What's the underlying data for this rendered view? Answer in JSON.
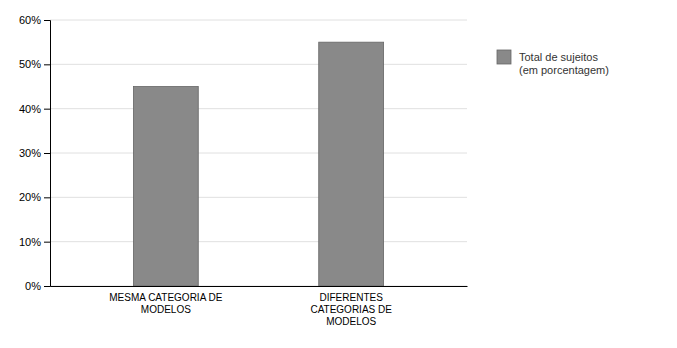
{
  "chart_data": {
    "type": "bar",
    "categories": [
      "MESMA CATEGORIA DE\nMODELOS",
      "DIFERENTES\nCATEGORIAS DE\nMODELOS"
    ],
    "series": [
      {
        "name": "Total de sujeitos\n(em porcentagem)",
        "color": "#898989",
        "values": [
          0.45,
          0.55
        ]
      }
    ],
    "ylim": [
      0,
      0.6
    ],
    "yticks": [
      {
        "value": 0.0,
        "label": "0%"
      },
      {
        "value": 0.1,
        "label": "10%"
      },
      {
        "value": 0.2,
        "label": "20%"
      },
      {
        "value": 0.3,
        "label": "30%"
      },
      {
        "value": 0.4,
        "label": "40%"
      },
      {
        "value": 0.5,
        "label": "50%"
      },
      {
        "value": 0.6,
        "label": "60%"
      }
    ],
    "grid": true,
    "legend": "right"
  }
}
